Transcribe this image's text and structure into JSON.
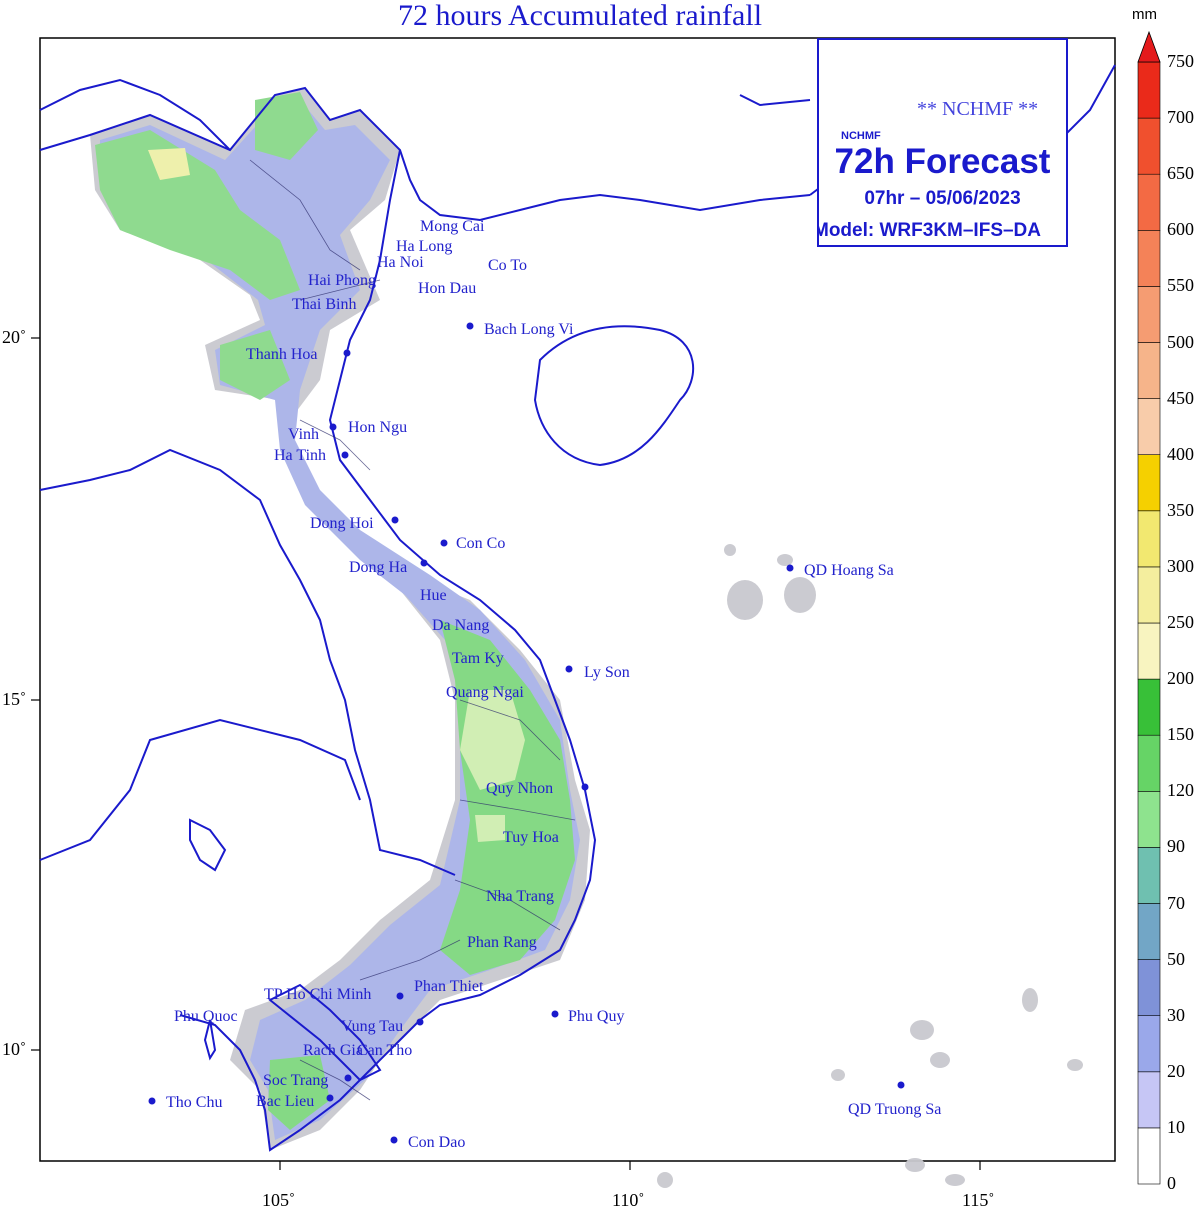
{
  "title": "72 hours Accumulated rainfall",
  "infobox": {
    "agency": "** NCHMF **",
    "logo_text": "NCHMF",
    "forecast": "72h Forecast",
    "date": "07hr – 05/06/2023",
    "model": "Model: WRF3KM–IFS–DA"
  },
  "colorbar": {
    "unit": "mm",
    "ticks": [
      "0",
      "10",
      "20",
      "30",
      "50",
      "70",
      "90",
      "120",
      "150",
      "200",
      "250",
      "300",
      "350",
      "400",
      "450",
      "500",
      "550",
      "600",
      "650",
      "700",
      "750"
    ],
    "colors": [
      "#ffffff",
      "#c6c6f5",
      "#9aa8ea",
      "#7f92d8",
      "#72a6c6",
      "#6fc0b0",
      "#8ee38e",
      "#66d466",
      "#38c038",
      "#f8f4c0",
      "#f4ee9e",
      "#f2e870",
      "#f5d000",
      "#f8ccaa",
      "#f6b48a",
      "#f59c72",
      "#f48258",
      "#f36a44",
      "#f0502e",
      "#ea2a1a"
    ]
  },
  "axes": {
    "lon_labels": [
      "105˚",
      "110˚",
      "115˚"
    ],
    "lat_labels": [
      "20˚",
      "15˚",
      "10˚"
    ]
  },
  "places": [
    "Mong Cai",
    "Ha Long",
    "Ha Noi",
    "Co To",
    "Hai Phong",
    "Hon Dau",
    "Thai Binh",
    "Bach Long Vi",
    "Thanh Hoa",
    "Hon Ngu",
    "Vinh",
    "Ha Tinh",
    "Dong Hoi",
    "Con Co",
    "Dong Ha",
    "QD Hoang Sa",
    "Hue",
    "Da Nang",
    "Tam Ky",
    "Ly Son",
    "Quang Ngai",
    "Quy Nhon",
    "Tuy Hoa",
    "Nha Trang",
    "Phan Rang",
    "Phan Thiet",
    "TP Ho Chi Minh",
    "Phu Quoc",
    "Phu Quy",
    "Vung Tau",
    "Rach Gia",
    "Can Tho",
    "Soc Trang",
    "Tho Chu",
    "Bac Lieu",
    "QD Truong Sa",
    "Con Dao"
  ]
}
